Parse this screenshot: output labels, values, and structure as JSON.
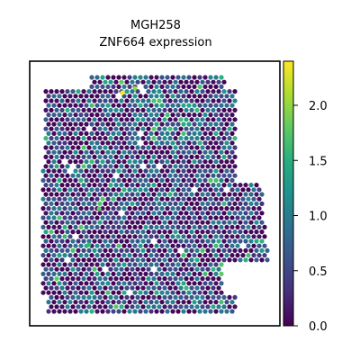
{
  "chart_data": {
    "type": "scatter",
    "title_line1": "MGH258",
    "title_line2": "ZNF664 expression",
    "xlabel": "",
    "ylabel": "",
    "grid": false,
    "colormap": "viridis",
    "colorbar": {
      "min": 0.0,
      "max": 2.4,
      "ticks": [
        0.0,
        0.5,
        1.0,
        1.5,
        2.0
      ],
      "tick_labels": [
        "0.0",
        "0.5",
        "1.0",
        "1.5",
        "2.0"
      ]
    },
    "expression_distribution": {
      "zero_fraction": 0.42,
      "low_range": [
        0.3,
        1.1
      ],
      "high_examples": [
        2.4,
        2.0,
        1.8,
        1.6
      ],
      "mode_value": 0.6
    }
  }
}
